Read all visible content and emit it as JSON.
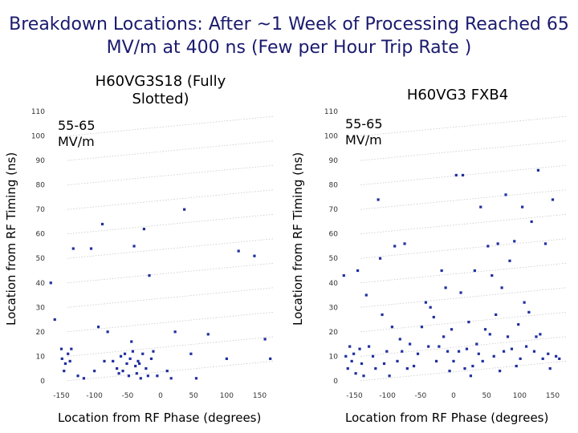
{
  "title": {
    "lead": "Breakdown Locations:",
    "rest": " After ~1 Week of Processing Reached 65 MV/m at 400 ns (Few per Hour Trip Rate )"
  },
  "colors": {
    "points": "#1f2f9e",
    "grid": "#c8c8c8",
    "title": "#1a1a6e"
  },
  "chart_data": [
    {
      "type": "scatter",
      "title": "H60VG3S18 (Fully Slotted)",
      "xlabel": "Location from RF Phase (degrees)",
      "ylabel": "Location from RF Timing (ns)",
      "annotation": [
        "55-65",
        "MV/m"
      ],
      "xticks": [
        -150,
        -100,
        -50,
        0,
        50,
        100,
        150
      ],
      "yticks": [
        0,
        10,
        20,
        30,
        40,
        50,
        60,
        70,
        80,
        90,
        100,
        110
      ],
      "xlim": [
        -170,
        170
      ],
      "ylim": [
        -3,
        112
      ],
      "grid": "sloped diagonal lines",
      "points": [
        [
          -166,
          40
        ],
        [
          -160,
          25
        ],
        [
          -150,
          13
        ],
        [
          -149,
          9
        ],
        [
          -146,
          4
        ],
        [
          -144,
          7
        ],
        [
          -140,
          11
        ],
        [
          -137,
          8
        ],
        [
          -135,
          13
        ],
        [
          -132,
          54
        ],
        [
          -125,
          2
        ],
        [
          -116,
          1
        ],
        [
          -105,
          54
        ],
        [
          -100,
          4
        ],
        [
          -94,
          22
        ],
        [
          -88,
          64
        ],
        [
          -85,
          8
        ],
        [
          -80,
          20
        ],
        [
          -72,
          8
        ],
        [
          -66,
          5
        ],
        [
          -63,
          3
        ],
        [
          -60,
          10
        ],
        [
          -57,
          4
        ],
        [
          -54,
          11
        ],
        [
          -51,
          7
        ],
        [
          -48,
          2
        ],
        [
          -46,
          9
        ],
        [
          -44,
          16
        ],
        [
          -42,
          12
        ],
        [
          -40,
          55
        ],
        [
          -38,
          6
        ],
        [
          -36,
          3
        ],
        [
          -34,
          8
        ],
        [
          -32,
          7
        ],
        [
          -30,
          1
        ],
        [
          -27,
          11
        ],
        [
          -25,
          62
        ],
        [
          -22,
          5
        ],
        [
          -19,
          2
        ],
        [
          -17,
          43
        ],
        [
          -14,
          9
        ],
        [
          -11,
          12
        ],
        [
          -5,
          2
        ],
        [
          10,
          4
        ],
        [
          16,
          1
        ],
        [
          22,
          20
        ],
        [
          36,
          70
        ],
        [
          46,
          11
        ],
        [
          54,
          1
        ],
        [
          72,
          19
        ],
        [
          100,
          9
        ],
        [
          118,
          53
        ],
        [
          142,
          51
        ],
        [
          158,
          17
        ],
        [
          166,
          9
        ]
      ]
    },
    {
      "type": "scatter",
      "title": "H60VG3 FXB4",
      "xlabel": "Location from RF Phase (degrees)",
      "ylabel": "Location from RF Timing (ns)",
      "annotation": [
        "55-65",
        "MV/m"
      ],
      "xticks": [
        -150,
        -100,
        -50,
        0,
        50,
        100,
        150
      ],
      "yticks": [
        0,
        10,
        20,
        30,
        40,
        50,
        60,
        70,
        80,
        90,
        100,
        110
      ],
      "xlim": [
        -170,
        170
      ],
      "ylim": [
        -3,
        112
      ],
      "grid": "sloped diagonal lines",
      "points": [
        [
          -166,
          43
        ],
        [
          -163,
          10
        ],
        [
          -160,
          5
        ],
        [
          -157,
          14
        ],
        [
          -154,
          8
        ],
        [
          -151,
          11
        ],
        [
          -148,
          3
        ],
        [
          -145,
          45
        ],
        [
          -142,
          13
        ],
        [
          -139,
          7
        ],
        [
          -136,
          2
        ],
        [
          -132,
          35
        ],
        [
          -128,
          14
        ],
        [
          -122,
          10
        ],
        [
          -118,
          5
        ],
        [
          -114,
          74
        ],
        [
          -111,
          50
        ],
        [
          -108,
          27
        ],
        [
          -105,
          7
        ],
        [
          -101,
          12
        ],
        [
          -97,
          2
        ],
        [
          -93,
          22
        ],
        [
          -89,
          55
        ],
        [
          -85,
          8
        ],
        [
          -81,
          17
        ],
        [
          -78,
          12
        ],
        [
          -74,
          56
        ],
        [
          -70,
          5
        ],
        [
          -66,
          15
        ],
        [
          -60,
          6
        ],
        [
          -54,
          11
        ],
        [
          -48,
          22
        ],
        [
          -42,
          32
        ],
        [
          -38,
          14
        ],
        [
          -35,
          30
        ],
        [
          -30,
          26
        ],
        [
          -26,
          8
        ],
        [
          -22,
          14
        ],
        [
          -18,
          45
        ],
        [
          -15,
          18
        ],
        [
          -12,
          38
        ],
        [
          -9,
          12
        ],
        [
          -6,
          4
        ],
        [
          -3,
          21
        ],
        [
          0,
          8
        ],
        [
          4,
          84
        ],
        [
          8,
          12
        ],
        [
          11,
          36
        ],
        [
          14,
          84
        ],
        [
          17,
          5
        ],
        [
          20,
          13
        ],
        [
          23,
          24
        ],
        [
          26,
          2
        ],
        [
          29,
          6
        ],
        [
          32,
          45
        ],
        [
          35,
          15
        ],
        [
          38,
          11
        ],
        [
          41,
          71
        ],
        [
          44,
          8
        ],
        [
          48,
          21
        ],
        [
          52,
          55
        ],
        [
          55,
          19
        ],
        [
          58,
          43
        ],
        [
          61,
          10
        ],
        [
          64,
          27
        ],
        [
          67,
          56
        ],
        [
          70,
          4
        ],
        [
          73,
          38
        ],
        [
          76,
          12
        ],
        [
          79,
          76
        ],
        [
          82,
          18
        ],
        [
          85,
          49
        ],
        [
          88,
          13
        ],
        [
          92,
          57
        ],
        [
          95,
          6
        ],
        [
          98,
          23
        ],
        [
          101,
          9
        ],
        [
          104,
          71
        ],
        [
          107,
          32
        ],
        [
          110,
          14
        ],
        [
          114,
          28
        ],
        [
          118,
          65
        ],
        [
          122,
          12
        ],
        [
          125,
          18
        ],
        [
          128,
          86
        ],
        [
          131,
          19
        ],
        [
          135,
          9
        ],
        [
          139,
          56
        ],
        [
          143,
          11
        ],
        [
          146,
          5
        ],
        [
          150,
          74
        ],
        [
          155,
          10
        ],
        [
          160,
          9
        ]
      ]
    }
  ]
}
